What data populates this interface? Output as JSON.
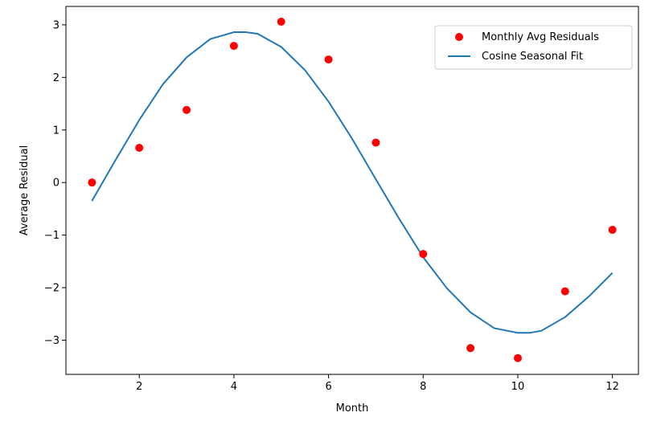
{
  "chart_data": {
    "type": "scatter",
    "title": "",
    "xlabel": "Month",
    "ylabel": "Average Residual",
    "xlim": [
      0.45,
      12.55
    ],
    "ylim": [
      -3.65,
      3.35
    ],
    "x_ticks": [
      2,
      4,
      6,
      8,
      10,
      12
    ],
    "x_tick_labels": [
      "2",
      "4",
      "6",
      "8",
      "10",
      "12"
    ],
    "y_ticks": [
      -3,
      -2,
      -1,
      0,
      1,
      2,
      3
    ],
    "y_tick_labels": [
      "−3",
      "−2",
      "−1",
      "0",
      "1",
      "2",
      "3"
    ],
    "grid": false,
    "legend_position": "top-right",
    "series": [
      {
        "name": "Monthly Avg Residuals",
        "kind": "scatter",
        "color": "#ff0000",
        "x": [
          1,
          2,
          3,
          4,
          5,
          6,
          7,
          8,
          9,
          10,
          11,
          12
        ],
        "y": [
          0.0,
          0.66,
          1.38,
          2.6,
          3.06,
          2.34,
          0.76,
          -1.36,
          -3.15,
          -3.34,
          -2.07,
          -0.9
        ]
      },
      {
        "name": "Cosine Seasonal Fit",
        "kind": "line",
        "color": "#1f77b4",
        "x": [
          1.0,
          1.5,
          2.0,
          2.5,
          3.0,
          3.5,
          4.0,
          4.25,
          4.5,
          5.0,
          5.5,
          6.0,
          6.5,
          7.0,
          7.5,
          8.0,
          8.5,
          9.0,
          9.5,
          10.0,
          10.25,
          10.5,
          11.0,
          11.5,
          12.0
        ],
        "y": [
          -0.35,
          0.43,
          1.19,
          1.87,
          2.38,
          2.73,
          2.86,
          2.86,
          2.83,
          2.58,
          2.14,
          1.54,
          0.83,
          0.06,
          -0.7,
          -1.42,
          -2.01,
          -2.47,
          -2.77,
          -2.86,
          -2.86,
          -2.82,
          -2.56,
          -2.17,
          -1.72
        ]
      }
    ]
  }
}
